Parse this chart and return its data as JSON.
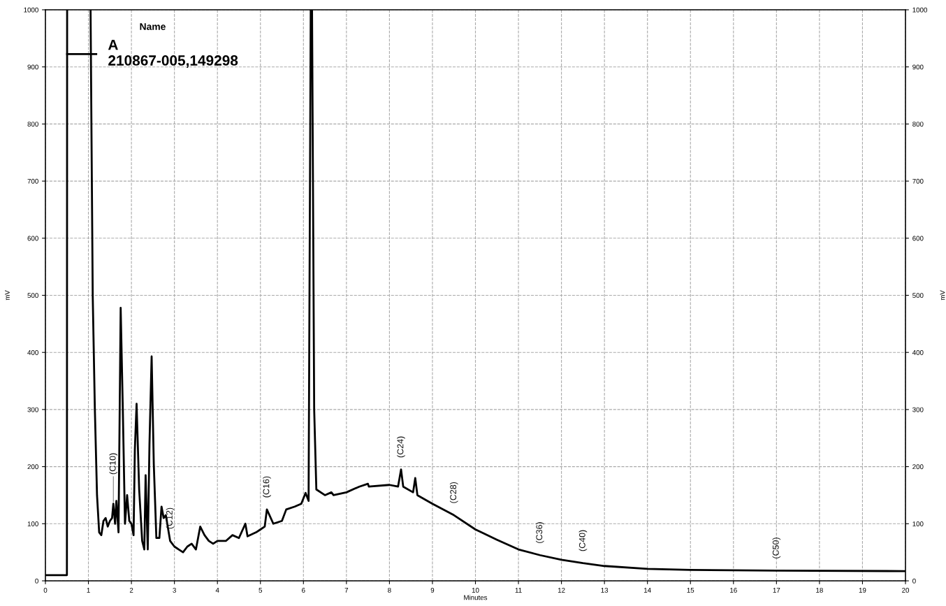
{
  "chart_data": {
    "type": "line",
    "xlabel": "Minutes",
    "ylabel": "mV",
    "y2label": "mV",
    "legend_title": "Name",
    "legend": "top left",
    "grid": true,
    "xlim": [
      0,
      20
    ],
    "xticks": [
      0,
      1,
      2,
      3,
      4,
      5,
      6,
      7,
      8,
      9,
      10,
      11,
      12,
      13,
      14,
      15,
      16,
      17,
      18,
      19,
      20
    ],
    "ylim": [
      0,
      1000
    ],
    "yticks": [
      0,
      100,
      200,
      300,
      400,
      500,
      600,
      700,
      800,
      900,
      1000
    ],
    "y2lim": [
      0,
      1000
    ],
    "y2ticks": [
      0,
      100,
      200,
      300,
      400,
      500,
      600,
      700,
      800,
      900,
      1000
    ],
    "series": [
      {
        "name": "A\n210867-005,149298",
        "color": "#000000",
        "x": [
          0,
          0.5,
          0.505,
          0.51,
          1.05,
          1.1,
          1.15,
          1.2,
          1.25,
          1.3,
          1.35,
          1.4,
          1.45,
          1.5,
          1.55,
          1.58,
          1.62,
          1.65,
          1.7,
          1.75,
          1.8,
          1.85,
          1.9,
          1.95,
          2.0,
          2.05,
          2.08,
          2.12,
          2.18,
          2.25,
          2.3,
          2.33,
          2.38,
          2.42,
          2.47,
          2.52,
          2.58,
          2.65,
          2.7,
          2.75,
          2.8,
          2.9,
          3.0,
          3.1,
          3.2,
          3.3,
          3.4,
          3.5,
          3.6,
          3.7,
          3.8,
          3.9,
          4.0,
          4.2,
          4.35,
          4.5,
          4.65,
          4.7,
          4.9,
          5.0,
          5.1,
          5.15,
          5.3,
          5.5,
          5.6,
          5.8,
          5.95,
          6.05,
          6.12,
          6.17,
          6.2,
          6.25,
          6.3,
          6.5,
          6.65,
          6.7,
          7.0,
          7.3,
          7.5,
          7.52,
          8.0,
          8.2,
          8.27,
          8.32,
          8.55,
          8.6,
          8.65,
          9.0,
          9.5,
          10.0,
          10.5,
          11.0,
          11.5,
          12.0,
          12.5,
          13.0,
          14.0,
          15.0,
          17.0,
          20.0
        ],
        "values": [
          10,
          10,
          1000,
          null,
          1000,
          500,
          300,
          150,
          85,
          80,
          105,
          110,
          95,
          105,
          110,
          135,
          100,
          140,
          85,
          478,
          300,
          100,
          150,
          105,
          100,
          80,
          230,
          310,
          160,
          70,
          55,
          185,
          55,
          240,
          393,
          205,
          75,
          75,
          130,
          110,
          115,
          70,
          60,
          55,
          50,
          60,
          65,
          55,
          95,
          80,
          70,
          65,
          70,
          70,
          80,
          75,
          100,
          78,
          85,
          90,
          95,
          125,
          100,
          105,
          125,
          130,
          135,
          154,
          140,
          1000,
          1000,
          300,
          160,
          150,
          155,
          150,
          155,
          165,
          170,
          165,
          168,
          165,
          195,
          165,
          155,
          180,
          150,
          135,
          115,
          90,
          72,
          55,
          45,
          37,
          31,
          26,
          21,
          19,
          18,
          17
        ]
      }
    ],
    "annotations": [
      {
        "text": "(C10)",
        "x": 1.58,
        "y": 135
      },
      {
        "text": "(C12)",
        "x": 2.9,
        "y": 70
      },
      {
        "text": "(C16)",
        "x": 5.15,
        "y": 125
      },
      {
        "text": "(C24)",
        "x": 8.27,
        "y": 195
      },
      {
        "text": "(C28)",
        "x": 9.5,
        "y": 115
      },
      {
        "text": "(C36)",
        "x": 11.5,
        "y": 45
      },
      {
        "text": "(C40)",
        "x": 12.5,
        "y": 31
      },
      {
        "text": "(C50)",
        "x": 17.0,
        "y": 18
      }
    ]
  }
}
